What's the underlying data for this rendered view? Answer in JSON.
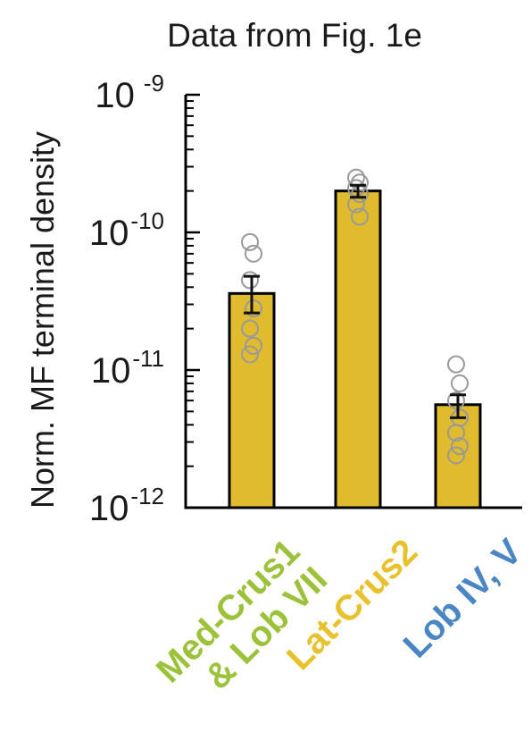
{
  "chart_data": {
    "type": "bar",
    "title": "Data from Fig. 1e",
    "ylabel": "Norm. MF terminal density",
    "xlabel": "",
    "yscale": "log",
    "ylim": [
      1e-12,
      1e-09
    ],
    "yticks": [
      {
        "value": 1e-09,
        "base": "10",
        "exp": "-9"
      },
      {
        "value": 1e-10,
        "base": "10",
        "exp": "-10"
      },
      {
        "value": 1e-11,
        "base": "10",
        "exp": "-11"
      },
      {
        "value": 1e-12,
        "base": "10",
        "exp": "-12"
      }
    ],
    "categories": [
      "Med-Crus1 & Lob VII",
      "Lat-Crus2",
      "Lob IV, V"
    ],
    "category_label_lines": [
      [
        "Med-Crus1",
        "& Lob VII"
      ],
      [
        "Lat-Crus2"
      ],
      [
        "Lob IV, V"
      ]
    ],
    "category_colors": [
      "#9cc23c",
      "#e8c22e",
      "#4a86c4"
    ],
    "values": [
      3.6e-11,
      2e-10,
      5.6e-12
    ],
    "error_low": [
      2.6e-11,
      1.8e-10,
      4.5e-12
    ],
    "error_high": [
      4.8e-11,
      2.2e-10,
      6.6e-12
    ],
    "points": [
      [
        8.5e-11,
        7e-11,
        4.5e-11,
        2.8e-11,
        2e-11,
        1.5e-11,
        1.3e-11
      ],
      [
        2.5e-10,
        2.3e-10,
        2.1e-10,
        1.9e-10,
        1.6e-10,
        1.3e-10
      ],
      [
        1.1e-11,
        8e-12,
        6e-12,
        4.5e-12,
        3.5e-12,
        2.8e-12,
        2.4e-12
      ]
    ],
    "bar_color": "#e0bb2e",
    "bar_edge_color": "#000000",
    "point_color": "#999999",
    "grid": false
  }
}
